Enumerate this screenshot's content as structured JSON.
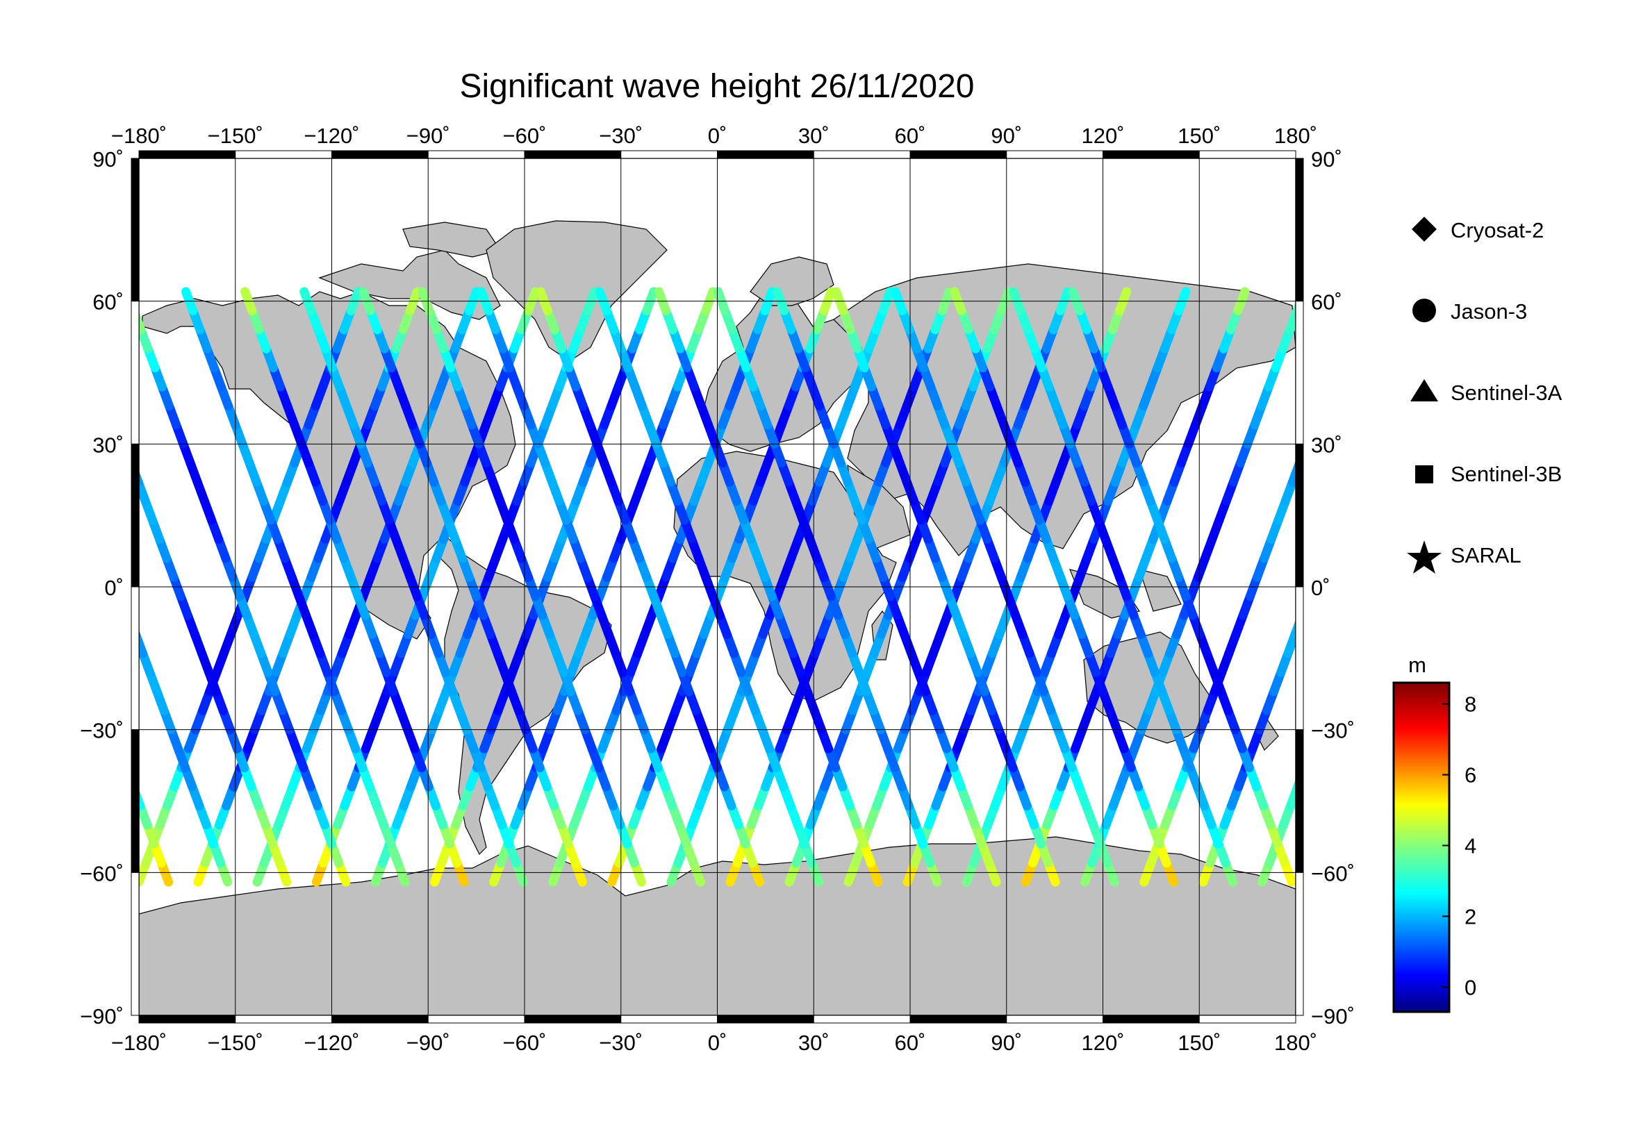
{
  "title": "Significant wave height 26/11/2020",
  "map": {
    "projection": "plate-carree",
    "lon_range": [
      -180,
      180
    ],
    "lat_range": [
      -90,
      90
    ],
    "lon_ticks": [
      "−180˚",
      "−150˚",
      "−120˚",
      "−90˚",
      "−60˚",
      "−30˚",
      "0˚",
      "30˚",
      "60˚",
      "90˚",
      "120˚",
      "150˚",
      "180˚"
    ],
    "lat_ticks": [
      "90˚",
      "60˚",
      "30˚",
      "0˚",
      "−30˚",
      "−60˚",
      "−90˚"
    ],
    "grid": true,
    "land_color": "#c0c0c0",
    "ocean_color": "#ffffff"
  },
  "legend": {
    "placement": "right",
    "items": [
      {
        "label": "Cryosat-2",
        "symbol": "diamond"
      },
      {
        "label": "Jason-3",
        "symbol": "circle"
      },
      {
        "label": "Sentinel-3A",
        "symbol": "triangle"
      },
      {
        "label": "Sentinel-3B",
        "symbol": "square"
      },
      {
        "label": "SARAL",
        "symbol": "star"
      }
    ]
  },
  "colorbar": {
    "unit": "m",
    "range": [
      -0.7,
      8.6
    ],
    "ticks": [
      "8",
      "6",
      "4",
      "2",
      "0"
    ],
    "colormap": "jet"
  }
}
